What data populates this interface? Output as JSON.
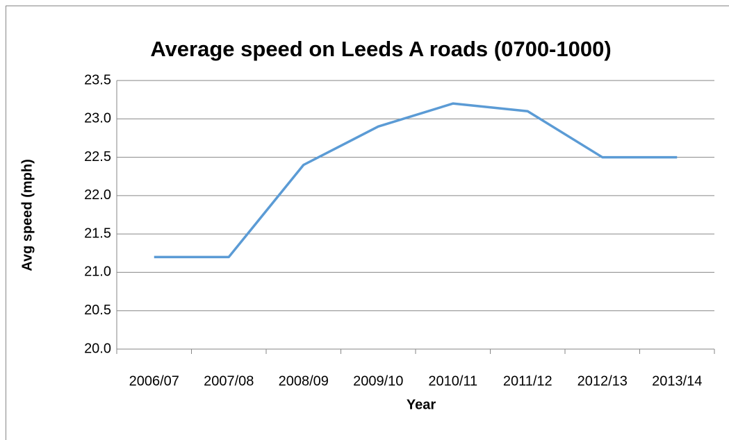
{
  "chart_data": {
    "type": "line",
    "title": "Average speed on Leeds A roads (0700-1000)",
    "xlabel": "Year",
    "ylabel": "Avg speed (mph)",
    "categories": [
      "2006/07",
      "2007/08",
      "2008/09",
      "2009/10",
      "2010/11",
      "2011/12",
      "2012/13",
      "2013/14"
    ],
    "series": [
      {
        "name": "Avg speed",
        "color": "#5b9bd5",
        "values": [
          21.2,
          21.2,
          22.4,
          22.9,
          23.2,
          23.1,
          22.5,
          22.5
        ]
      }
    ],
    "ylim": [
      20,
      23.5
    ],
    "yticks": [
      {
        "value": 20,
        "label": "20.0"
      },
      20.5,
      {
        "value": 21,
        "label": "21.0"
      },
      21.5,
      {
        "value": 22,
        "label": "22.0"
      },
      22.5,
      {
        "value": 23,
        "label": "23.0"
      },
      23.5
    ],
    "grid": true,
    "legend": false
  }
}
